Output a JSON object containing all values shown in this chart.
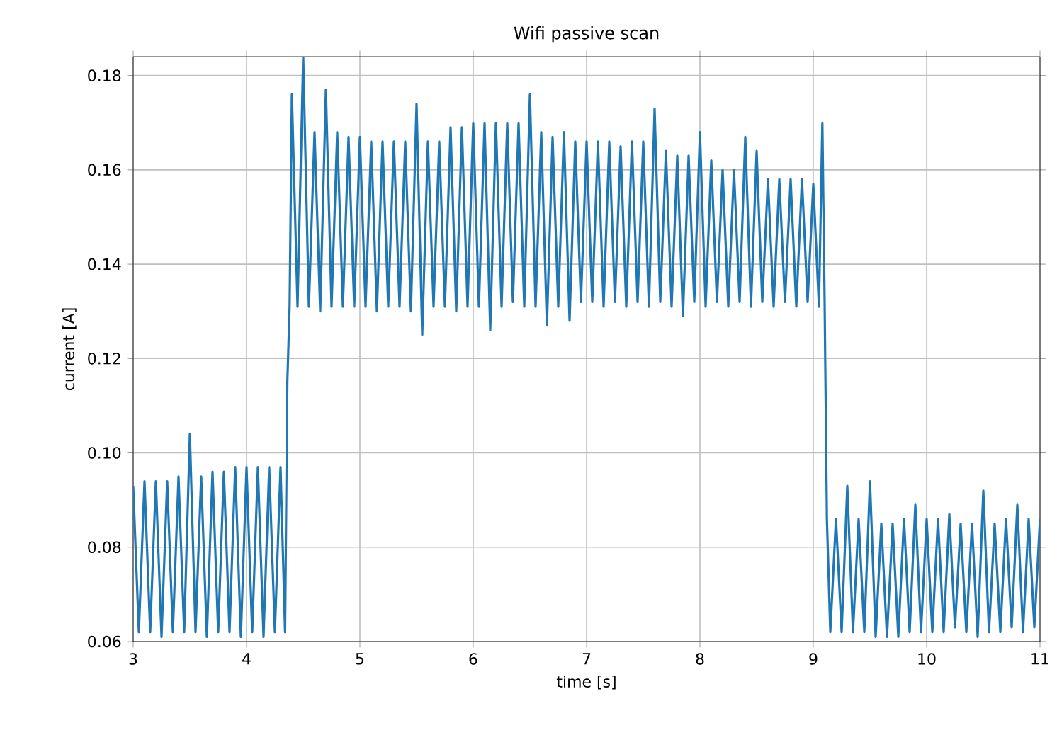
{
  "chart_data": {
    "type": "line",
    "title": "Wifi passive scan",
    "xlabel": "time [s]",
    "ylabel": "current [A]",
    "xlim": [
      3,
      11
    ],
    "ylim": [
      0.06,
      0.184
    ],
    "xticks": [
      3,
      4,
      5,
      6,
      7,
      8,
      9,
      10,
      11
    ],
    "yticks": [
      0.06,
      0.08,
      {
        "value": 0.1,
        "label": "0.10"
      },
      0.12,
      0.14,
      0.16,
      0.18
    ],
    "grid": true,
    "line_style": "solid",
    "series": [
      {
        "color": "#1f77b4",
        "x": [
          3.0,
          3.05,
          3.1,
          3.15,
          3.2,
          3.25,
          3.3,
          3.35,
          3.4,
          3.45,
          3.5,
          3.55,
          3.6,
          3.65,
          3.7,
          3.75,
          3.8,
          3.85,
          3.9,
          3.95,
          4.0,
          4.05,
          4.1,
          4.15,
          4.2,
          4.25,
          4.3,
          4.34,
          4.36,
          4.38,
          4.4,
          4.45,
          4.5,
          4.55,
          4.6,
          4.65,
          4.7,
          4.75,
          4.8,
          4.85,
          4.9,
          4.95,
          5.0,
          5.05,
          5.1,
          5.15,
          5.2,
          5.25,
          5.3,
          5.35,
          5.4,
          5.45,
          5.5,
          5.55,
          5.6,
          5.65,
          5.7,
          5.75,
          5.8,
          5.85,
          5.9,
          5.95,
          6.0,
          6.05,
          6.1,
          6.15,
          6.2,
          6.25,
          6.3,
          6.35,
          6.4,
          6.45,
          6.5,
          6.55,
          6.6,
          6.65,
          6.7,
          6.75,
          6.8,
          6.85,
          6.9,
          6.95,
          7.0,
          7.05,
          7.1,
          7.15,
          7.2,
          7.25,
          7.3,
          7.35,
          7.4,
          7.45,
          7.5,
          7.55,
          7.6,
          7.65,
          7.7,
          7.75,
          7.8,
          7.85,
          7.9,
          7.95,
          8.0,
          8.05,
          8.1,
          8.15,
          8.2,
          8.25,
          8.3,
          8.35,
          8.4,
          8.45,
          8.5,
          8.55,
          8.6,
          8.65,
          8.7,
          8.75,
          8.8,
          8.85,
          8.9,
          8.95,
          9.0,
          9.05,
          9.08,
          9.1,
          9.12,
          9.15,
          9.2,
          9.25,
          9.3,
          9.35,
          9.4,
          9.45,
          9.5,
          9.55,
          9.6,
          9.65,
          9.7,
          9.75,
          9.8,
          9.85,
          9.9,
          9.95,
          10.0,
          10.05,
          10.1,
          10.15,
          10.2,
          10.25,
          10.3,
          10.35,
          10.4,
          10.45,
          10.5,
          10.55,
          10.6,
          10.65,
          10.7,
          10.75,
          10.8,
          10.85,
          10.9,
          10.95,
          11.0
        ],
        "values": [
          0.093,
          0.062,
          0.094,
          0.062,
          0.094,
          0.061,
          0.094,
          0.062,
          0.095,
          0.062,
          0.104,
          0.062,
          0.095,
          0.061,
          0.096,
          0.062,
          0.096,
          0.062,
          0.097,
          0.061,
          0.097,
          0.062,
          0.097,
          0.061,
          0.097,
          0.062,
          0.097,
          0.062,
          0.115,
          0.131,
          0.176,
          0.131,
          0.184,
          0.131,
          0.168,
          0.13,
          0.177,
          0.131,
          0.168,
          0.131,
          0.167,
          0.131,
          0.167,
          0.131,
          0.166,
          0.13,
          0.166,
          0.131,
          0.166,
          0.131,
          0.166,
          0.13,
          0.174,
          0.125,
          0.166,
          0.131,
          0.166,
          0.131,
          0.169,
          0.13,
          0.169,
          0.131,
          0.17,
          0.131,
          0.17,
          0.126,
          0.17,
          0.131,
          0.17,
          0.132,
          0.17,
          0.131,
          0.176,
          0.131,
          0.168,
          0.127,
          0.167,
          0.131,
          0.168,
          0.128,
          0.166,
          0.132,
          0.166,
          0.132,
          0.166,
          0.131,
          0.166,
          0.132,
          0.165,
          0.131,
          0.166,
          0.132,
          0.166,
          0.131,
          0.173,
          0.132,
          0.164,
          0.131,
          0.163,
          0.129,
          0.163,
          0.132,
          0.168,
          0.131,
          0.162,
          0.132,
          0.16,
          0.131,
          0.16,
          0.132,
          0.167,
          0.131,
          0.164,
          0.132,
          0.158,
          0.131,
          0.158,
          0.132,
          0.158,
          0.131,
          0.158,
          0.132,
          0.157,
          0.131,
          0.17,
          0.132,
          0.086,
          0.062,
          0.086,
          0.062,
          0.093,
          0.062,
          0.086,
          0.062,
          0.094,
          0.061,
          0.085,
          0.061,
          0.085,
          0.061,
          0.086,
          0.062,
          0.089,
          0.062,
          0.086,
          0.062,
          0.086,
          0.062,
          0.087,
          0.063,
          0.085,
          0.062,
          0.085,
          0.061,
          0.092,
          0.062,
          0.085,
          0.062,
          0.086,
          0.063,
          0.089,
          0.062,
          0.086,
          0.063,
          0.086
        ]
      }
    ]
  }
}
